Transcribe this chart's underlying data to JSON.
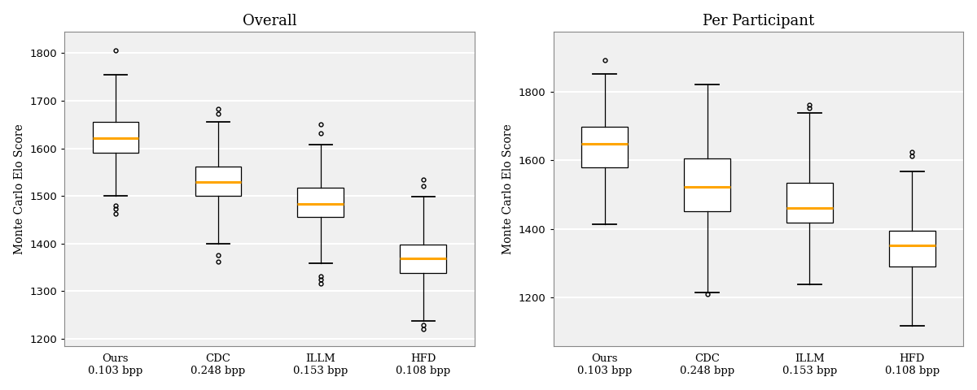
{
  "title_left": "Overall",
  "title_right": "Per Participant",
  "ylabel": "Monte Carlo Elo Score",
  "categories": [
    "Ours\n0.103 bpp",
    "CDC\n0.248 bpp",
    "ILLM\n0.153 bpp",
    "HFD\n0.108 bpp"
  ],
  "overall": {
    "Ours": {
      "q1": 1590,
      "median": 1622,
      "q3": 1655,
      "whislo": 1500,
      "whishi": 1755,
      "fliers_high": [
        1805
      ],
      "fliers_low": [
        1462,
        1472,
        1480
      ]
    },
    "CDC": {
      "q1": 1500,
      "median": 1530,
      "q3": 1562,
      "whislo": 1400,
      "whishi": 1655,
      "fliers_high": [
        1672,
        1682
      ],
      "fliers_low": [
        1362,
        1375
      ]
    },
    "ILLM": {
      "q1": 1455,
      "median": 1483,
      "q3": 1517,
      "whislo": 1358,
      "whishi": 1608,
      "fliers_high": [
        1632,
        1650
      ],
      "fliers_low": [
        1315,
        1325,
        1332
      ]
    },
    "HFD": {
      "q1": 1338,
      "median": 1368,
      "q3": 1397,
      "whislo": 1238,
      "whishi": 1498,
      "fliers_high": [
        1520,
        1535
      ],
      "fliers_low": [
        1220,
        1228
      ]
    }
  },
  "per_participant": {
    "Ours": {
      "q1": 1580,
      "median": 1648,
      "q3": 1698,
      "whislo": 1415,
      "whishi": 1852,
      "fliers_high": [
        1892
      ],
      "fliers_low": []
    },
    "CDC": {
      "q1": 1452,
      "median": 1523,
      "q3": 1605,
      "whislo": 1215,
      "whishi": 1822,
      "fliers_high": [],
      "fliers_low": [
        1210
      ]
    },
    "ILLM": {
      "q1": 1418,
      "median": 1462,
      "q3": 1535,
      "whislo": 1238,
      "whishi": 1738,
      "fliers_high": [
        1752,
        1762
      ],
      "fliers_low": []
    },
    "HFD": {
      "q1": 1292,
      "median": 1352,
      "q3": 1395,
      "whislo": 1118,
      "whishi": 1568,
      "fliers_high": [
        1612,
        1625
      ],
      "fliers_low": []
    }
  },
  "median_color": "#FFA500",
  "box_color": "white",
  "whisker_color": "black",
  "flier_color": "black",
  "box_edgecolor": "black",
  "background_color": "#f0f0f0",
  "grid_color": "white",
  "ylim_left": [
    1185,
    1845
  ],
  "ylim_right": [
    1060,
    1975
  ],
  "yticks_left": [
    1200,
    1300,
    1400,
    1500,
    1600,
    1700,
    1800
  ],
  "yticks_right": [
    1200,
    1400,
    1600,
    1800
  ],
  "figsize": [
    12.0,
    4.8
  ],
  "dpi": 100,
  "title_fontsize": 13,
  "label_fontsize": 10,
  "tick_fontsize": 9.5
}
